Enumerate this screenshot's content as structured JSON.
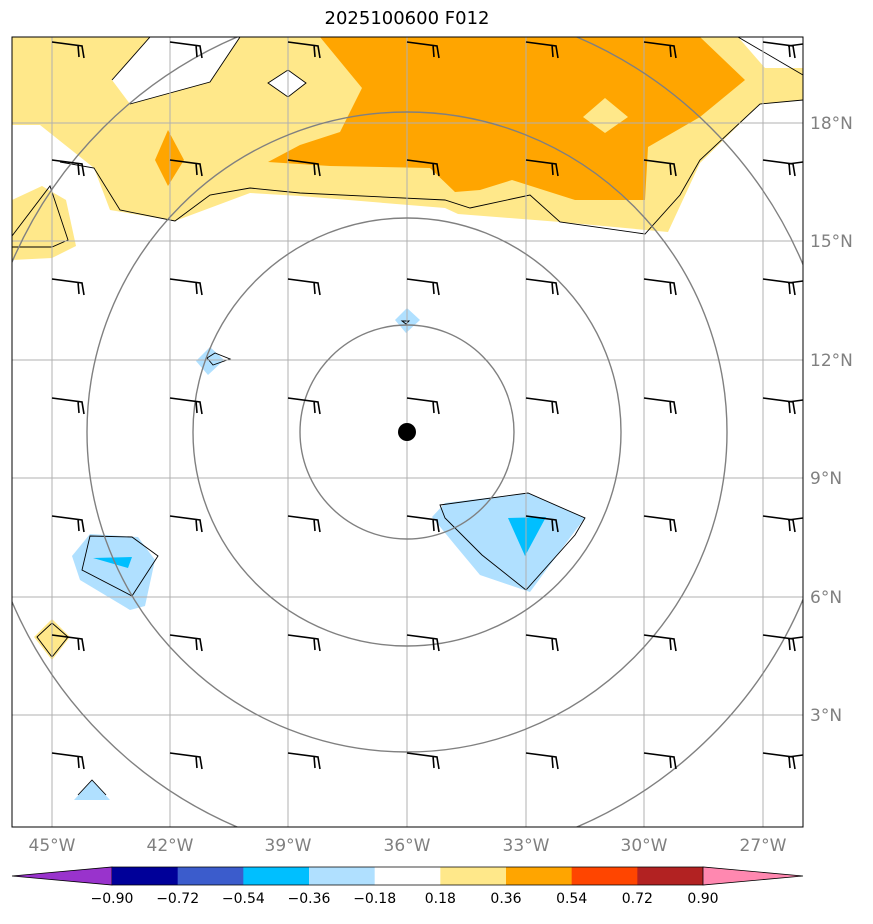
{
  "title": "2025100600 F012",
  "center_marker": {
    "lon": -36,
    "lat": 10.2
  },
  "axes": {
    "lon_range": [
      -46,
      -26
    ],
    "lat_range": [
      0.8,
      20.8
    ],
    "lon_ticks": [
      -45,
      -42,
      -39,
      -36,
      -33,
      -30,
      -27
    ],
    "lon_labels": [
      "45°W",
      "42°W",
      "39°W",
      "36°W",
      "33°W",
      "30°W",
      "27°W"
    ],
    "lat_ticks": [
      3,
      6,
      9,
      12,
      15,
      18
    ],
    "lat_labels": [
      "3°N",
      "6°N",
      "9°N",
      "12°N",
      "15°N",
      "18°N"
    ]
  },
  "range_rings": 4,
  "colorbar": {
    "colors": [
      "#9933cc",
      "#000099",
      "#3b5ccc",
      "#00bfff",
      "#b0e0ff",
      "#ffffff",
      "#ffe88a",
      "#ffa500",
      "#ff4500",
      "#b22222",
      "#ff88b0"
    ],
    "tick_labels": [
      "−0.90",
      "−0.72",
      "−0.54",
      "−0.36",
      "−0.18",
      "0.18",
      "0.36",
      "0.54",
      "0.72",
      "0.90"
    ]
  },
  "colors": {
    "light_yellow": "#ffe88a",
    "orange": "#ffa500",
    "light_blue": "#b0e0ff",
    "deep_sky": "#00bfff",
    "grid": "#b0b0b0",
    "ring": "#808080"
  }
}
